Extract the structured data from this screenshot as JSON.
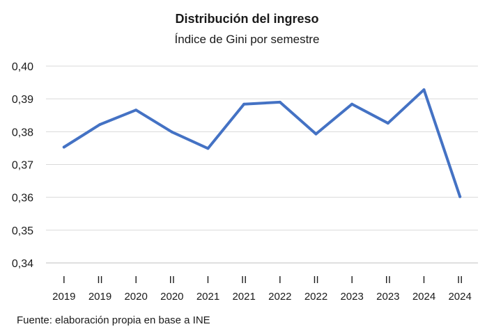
{
  "chart_data": {
    "type": "line",
    "title": "Distribución del ingreso",
    "subtitle": "Índice de Gini por semestre",
    "categories": [
      {
        "semester": "I",
        "year": "2019"
      },
      {
        "semester": "II",
        "year": "2019"
      },
      {
        "semester": "I",
        "year": "2020"
      },
      {
        "semester": "II",
        "year": "2020"
      },
      {
        "semester": "I",
        "year": "2021"
      },
      {
        "semester": "II",
        "year": "2021"
      },
      {
        "semester": "I",
        "year": "2022"
      },
      {
        "semester": "II",
        "year": "2022"
      },
      {
        "semester": "I",
        "year": "2023"
      },
      {
        "semester": "II",
        "year": "2023"
      },
      {
        "semester": "I",
        "year": "2024"
      },
      {
        "semester": "II",
        "year": "2024"
      }
    ],
    "series": [
      {
        "values": [
          0.3753,
          0.3822,
          0.3866,
          0.3799,
          0.3749,
          0.3884,
          0.389,
          0.3793,
          0.3884,
          0.3826,
          0.3928,
          0.3602
        ]
      }
    ],
    "ylim": [
      0.34,
      0.4
    ],
    "yticks": [
      {
        "value": 0.4,
        "label": "0,40"
      },
      {
        "value": 0.39,
        "label": "0,39"
      },
      {
        "value": 0.38,
        "label": "0,38"
      },
      {
        "value": 0.37,
        "label": "0,37"
      },
      {
        "value": 0.36,
        "label": "0,36"
      },
      {
        "value": 0.35,
        "label": "0,35"
      },
      {
        "value": 0.34,
        "label": "0,34"
      }
    ],
    "grid": true,
    "line_color": "#4472c4",
    "grid_color": "#d9d9d9"
  },
  "source": "Fuente: elaboración propia en base a INE"
}
